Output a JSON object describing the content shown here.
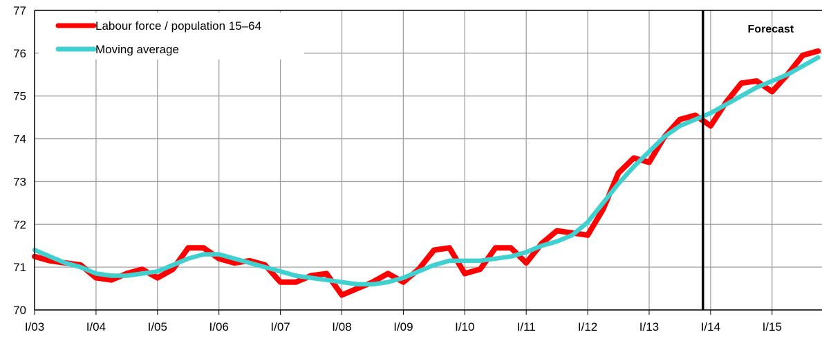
{
  "chart_data": {
    "type": "line",
    "title": "",
    "xlabel": "",
    "ylabel": "",
    "ylim": [
      70,
      77
    ],
    "yticks": [
      "70",
      "71",
      "72",
      "73",
      "74",
      "75",
      "76",
      "77"
    ],
    "xticks": [
      "I/03",
      "I/04",
      "I/05",
      "I/06",
      "I/07",
      "I/08",
      "I/09",
      "I/10",
      "I/11",
      "I/12",
      "I/13",
      "I/14",
      "I/15"
    ],
    "grid": true,
    "legend_position": "top-left",
    "forecast_marker": {
      "label": "Forecast",
      "x_index": 43.5
    },
    "series": [
      {
        "name": "Labour force / population 15–64",
        "color": "#ff0000",
        "values": [
          71.25,
          71.15,
          71.1,
          71.05,
          70.75,
          70.7,
          70.85,
          70.95,
          70.75,
          70.95,
          71.45,
          71.45,
          71.2,
          71.1,
          71.15,
          71.05,
          70.65,
          70.65,
          70.8,
          70.85,
          70.35,
          70.5,
          70.65,
          70.85,
          70.65,
          70.95,
          71.4,
          71.45,
          70.85,
          70.95,
          71.45,
          71.45,
          71.1,
          71.55,
          71.85,
          71.8,
          71.75,
          72.35,
          73.2,
          73.55,
          73.45,
          74.05,
          74.45,
          74.55,
          74.3,
          74.85,
          75.3,
          75.35,
          75.1,
          75.5,
          75.95,
          76.05
        ]
      },
      {
        "name": "Moving average",
        "color": "#40d0d0",
        "values": [
          71.4,
          71.25,
          71.1,
          71.0,
          70.85,
          70.8,
          70.8,
          70.85,
          70.9,
          71.05,
          71.2,
          71.3,
          71.3,
          71.2,
          71.1,
          71.0,
          70.9,
          70.8,
          70.75,
          70.7,
          70.65,
          70.6,
          70.6,
          70.65,
          70.75,
          70.9,
          71.05,
          71.15,
          71.15,
          71.15,
          71.2,
          71.25,
          71.35,
          71.5,
          71.6,
          71.75,
          72.05,
          72.5,
          72.95,
          73.35,
          73.7,
          74.05,
          74.3,
          74.45,
          74.6,
          74.8,
          75.0,
          75.2,
          75.35,
          75.5,
          75.7,
          75.9
        ]
      }
    ]
  }
}
